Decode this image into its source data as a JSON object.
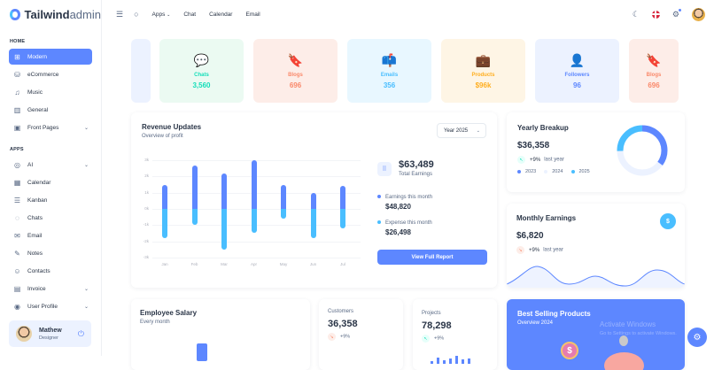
{
  "brand": {
    "name_bold": "Tailwind",
    "name_light": "admin"
  },
  "topbar": {
    "links": [
      "Apps",
      "Chat",
      "Calendar",
      "Email"
    ],
    "icons": [
      "menu-icon",
      "search-icon",
      "moon-icon",
      "flag-icon",
      "bell-icon",
      "avatar"
    ]
  },
  "sidebar": {
    "home_label": "HOME",
    "home_items": [
      {
        "label": "Modern",
        "icon": "⊞",
        "active": true
      },
      {
        "label": "eCommerce",
        "icon": "⛁"
      },
      {
        "label": "Music",
        "icon": "♫"
      },
      {
        "label": "General",
        "icon": "▥"
      },
      {
        "label": "Front Pages",
        "icon": "▣",
        "chevron": true
      }
    ],
    "apps_label": "APPS",
    "apps_items": [
      {
        "label": "AI",
        "icon": "◎",
        "chevron": true
      },
      {
        "label": "Calendar",
        "icon": "▦"
      },
      {
        "label": "Kanban",
        "icon": "☰"
      },
      {
        "label": "Chats",
        "icon": "◌"
      },
      {
        "label": "Email",
        "icon": "✉"
      },
      {
        "label": "Notes",
        "icon": "✎"
      },
      {
        "label": "Contacts",
        "icon": "☺"
      },
      {
        "label": "Invoice",
        "icon": "▤",
        "chevron": true
      },
      {
        "label": "User Profile",
        "icon": "◉",
        "chevron": true
      }
    ],
    "profile": {
      "name": "Mathew",
      "role": "Designer"
    }
  },
  "stats": [
    {
      "label": "Chats",
      "value": "3,560",
      "bg": "#ebfaf2",
      "color": "#13deb9"
    },
    {
      "label": "Blogs",
      "value": "696",
      "bg": "#fdede8",
      "color": "#fa896b"
    },
    {
      "label": "Emails",
      "value": "356",
      "bg": "#e8f7ff",
      "color": "#49beff"
    },
    {
      "label": "Products",
      "value": "$96k",
      "bg": "#fef5e5",
      "color": "#ffae1f"
    },
    {
      "label": "Followers",
      "value": "96",
      "bg": "#ecf2ff",
      "color": "#5d87ff"
    },
    {
      "label": "Blogs",
      "value": "696",
      "bg": "#fdede8",
      "color": "#fa896b"
    }
  ],
  "revenue": {
    "title": "Revenue Updates",
    "subtitle": "Overview of profit",
    "year_select": "Year 2025",
    "total": "$63,489",
    "total_label": "Total Earnings",
    "earnings_label": "Earnings this month",
    "earnings_value": "$48,820",
    "expense_label": "Expense this month",
    "expense_value": "$26,498",
    "button": "View Full Report"
  },
  "chart_data": {
    "type": "bar",
    "title": "Revenue Updates",
    "categories": [
      "Jan",
      "Feb",
      "Mar",
      "Apr",
      "May",
      "Jun",
      "Jul"
    ],
    "series": [
      {
        "name": "Earnings",
        "color": "#5d87ff",
        "values": [
          1.5,
          2.7,
          2.2,
          3.0,
          1.5,
          1.0,
          1.4
        ]
      },
      {
        "name": "Expense",
        "color": "#49beff",
        "values": [
          -1.8,
          -1.0,
          -2.5,
          -1.5,
          -0.6,
          -1.8,
          -1.2
        ]
      }
    ],
    "yticks": [
      "3k",
      "2k",
      "1k",
      "0k",
      "-1k",
      "-2k",
      "-3k"
    ],
    "ylim": [
      -3,
      3
    ],
    "grid": true
  },
  "yearly": {
    "title": "Yearly Breakup",
    "value": "$36,358",
    "change": "+9%",
    "change_label": "last year",
    "legend": [
      {
        "label": "2023",
        "color": "#5d87ff"
      },
      {
        "label": "2024",
        "color": "#ecf2ff"
      },
      {
        "label": "2025",
        "color": "#49beff"
      }
    ]
  },
  "monthly": {
    "title": "Monthly Earnings",
    "value": "$6,820",
    "change": "+9%",
    "change_label": "last year",
    "icon": "$"
  },
  "salary": {
    "title": "Employee Salary",
    "subtitle": "Every month"
  },
  "customers": {
    "label": "Customers",
    "value": "36,358",
    "change": "+9%"
  },
  "projects": {
    "label": "Projects",
    "value": "78,298",
    "change": "+9%"
  },
  "best_selling": {
    "title": "Best Selling Products",
    "subtitle": "Overview 2024"
  },
  "watermark": {
    "line1": "Activate Windows",
    "line2": "Go to Settings to activate Windows."
  }
}
